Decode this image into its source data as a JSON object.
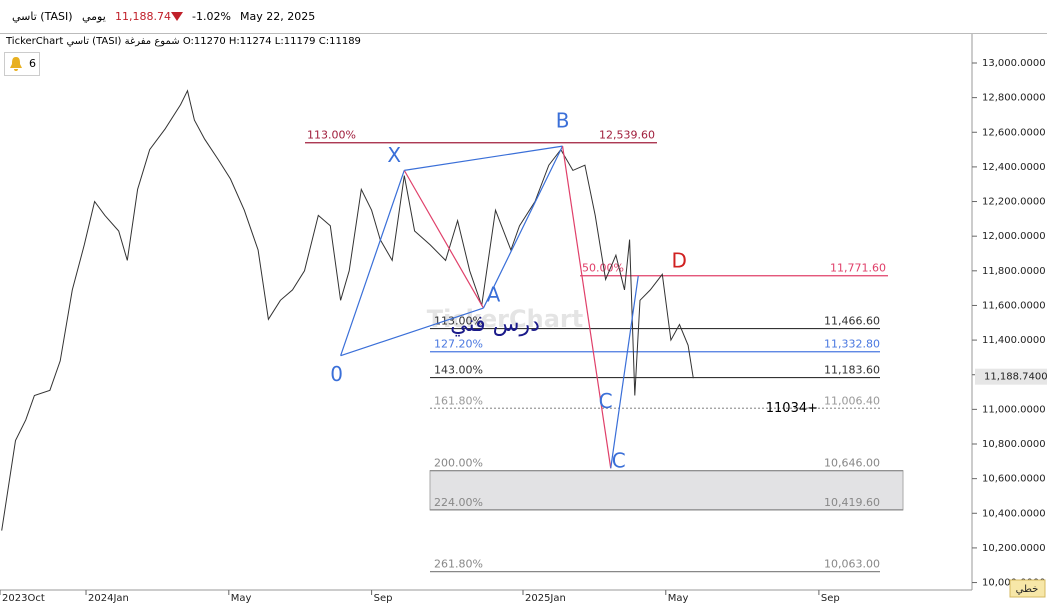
{
  "header": {
    "symbol": "تاسي (TASI)",
    "period": "يومي",
    "last": {
      "value": 11188.74,
      "label": "11,188.74"
    },
    "change": {
      "value": -1.02,
      "label": "-1.02%"
    },
    "date": "May 22, 2025"
  },
  "info": {
    "source": "TickerChart",
    "symbol": "تاسي (TASI)",
    "style": "شموع مفرغة",
    "ohlc": [
      "O:11270",
      "H:11274",
      "L:11179",
      "C:11189"
    ]
  },
  "alerts": 6,
  "chart_data": {
    "type": "line",
    "color": "#333333",
    "x": [
      1,
      9,
      15,
      20,
      29,
      35,
      42,
      49,
      55,
      61,
      69,
      74,
      80,
      87,
      96,
      105,
      109,
      113,
      119,
      127,
      134,
      142,
      150,
      156,
      163,
      170,
      177,
      185,
      192,
      198,
      203,
      210,
      216,
      221,
      228,
      235,
      241,
      250,
      259,
      266,
      273,
      280,
      288,
      297,
      302,
      311,
      319,
      326,
      333,
      340,
      346,
      352,
      358,
      363,
      366,
      369,
      372,
      378,
      385,
      390,
      395,
      400,
      403
    ],
    "values": [
      10300,
      10820,
      10940,
      11080,
      11110,
      11280,
      11690,
      11950,
      12200,
      12120,
      12030,
      11860,
      12270,
      12500,
      12620,
      12760,
      12840,
      12670,
      12560,
      12440,
      12330,
      12150,
      11920,
      11520,
      11630,
      11690,
      11800,
      12120,
      12060,
      11630,
      11800,
      12270,
      12150,
      11980,
      11860,
      12350,
      12030,
      11950,
      11860,
      12090,
      11800,
      11600,
      12150,
      11920,
      12060,
      12200,
      12410,
      12500,
      12380,
      12410,
      12120,
      11750,
      11890,
      11690,
      11980,
      11080,
      11630,
      11690,
      11780,
      11400,
      11490,
      11370,
      11180
    ],
    "xlim": [
      0,
      565
    ],
    "xticks": [
      {
        "value": 0,
        "label": "2023Oct"
      },
      {
        "value": 50,
        "label": "2024Jan"
      },
      {
        "value": 133,
        "label": "May"
      },
      {
        "value": 216,
        "label": "Sep"
      },
      {
        "value": 304,
        "label": "2025Jan"
      },
      {
        "value": 387,
        "label": "May"
      },
      {
        "value": 476,
        "label": "Sep"
      }
    ],
    "ylim": [
      9957,
      13161.6
    ],
    "yticks": [
      {
        "value": 13000,
        "label": "13,000.0000"
      },
      {
        "value": 12800,
        "label": "12,800.0000"
      },
      {
        "value": 12600,
        "label": "12,600.0000"
      },
      {
        "value": 12400,
        "label": "12,400.0000"
      },
      {
        "value": 12200,
        "label": "12,200.0000"
      },
      {
        "value": 12000,
        "label": "12,000.0000"
      },
      {
        "value": 11800,
        "label": "11,800.0000"
      },
      {
        "value": 11600,
        "label": "11,600.0000"
      },
      {
        "value": 11400,
        "label": "11,400.0000"
      },
      {
        "value": 11200,
        "label": "11,200.0000"
      },
      {
        "value": 11000,
        "label": "11,000.0000"
      },
      {
        "value": 10800,
        "label": "10,800.0000"
      },
      {
        "value": 10600,
        "label": "10,600.0000"
      },
      {
        "value": 10400,
        "label": "10,400.0000"
      },
      {
        "value": 10200,
        "label": "10,200.0000"
      },
      {
        "value": 10000,
        "label": "10,000.0000"
      }
    ],
    "levels": [
      {
        "pct": {
          "value": 113,
          "label": "113.00%"
        },
        "price": {
          "value": 12539.6,
          "label": "12,539.60"
        },
        "color": "#a01e3c"
      },
      {
        "pct": {
          "value": 50,
          "label": "50.00%"
        },
        "price": {
          "value": 11771.6,
          "label": "11,771.60"
        },
        "color": "#e0406a"
      },
      {
        "pct": {
          "value": 113,
          "label": "113.00%"
        },
        "price": {
          "value": 11466.6,
          "label": "11,466.60"
        },
        "color": "#333333"
      },
      {
        "pct": {
          "value": 127.2,
          "label": "127.20%"
        },
        "price": {
          "value": 11332.8,
          "label": "11,332.80"
        },
        "color": "#4a78e0"
      },
      {
        "pct": {
          "value": 143,
          "label": "143.00%"
        },
        "price": {
          "value": 11183.6,
          "label": "11,183.60"
        },
        "color": "#333333"
      },
      {
        "pct": {
          "value": 161.8,
          "label": "161.80%"
        },
        "price": {
          "value": 11006.4,
          "label": "11,006.40"
        },
        "color": "#999999"
      },
      {
        "pct": {
          "value": 200,
          "label": "200.00%"
        },
        "price": {
          "value": 10646,
          "label": "10,646.00"
        },
        "color": "#888888"
      },
      {
        "pct": {
          "value": 224,
          "label": "224.00%"
        },
        "price": {
          "value": 10419.6,
          "label": "10,419.60"
        },
        "color": "#888888"
      },
      {
        "pct": {
          "value": 261.8,
          "label": "261.80%"
        },
        "price": {
          "value": 10063,
          "label": "10,063.00"
        },
        "color": "#888888"
      }
    ],
    "pattern": [
      {
        "label": "0",
        "x": 198,
        "y": 11310
      },
      {
        "label": "X",
        "x": 235,
        "y": 12380
      },
      {
        "label": "A",
        "x": 281,
        "y": 11585
      },
      {
        "label": "B",
        "x": 327,
        "y": 12520
      },
      {
        "label": "C",
        "x": 355,
        "y": 10660
      },
      {
        "label": "D",
        "x": 371,
        "y": 11770
      }
    ],
    "annotations": [
      {
        "text": "C",
        "x": 352,
        "y": 11040
      },
      {
        "text": "11034+",
        "x": 450,
        "y": 11006
      }
    ],
    "watermark": "TickerChart",
    "overlay_text": "درس فني",
    "price_tag": {
      "value": 11188.74,
      "label": "11,188.7400"
    },
    "scale_mode": "خطي"
  }
}
